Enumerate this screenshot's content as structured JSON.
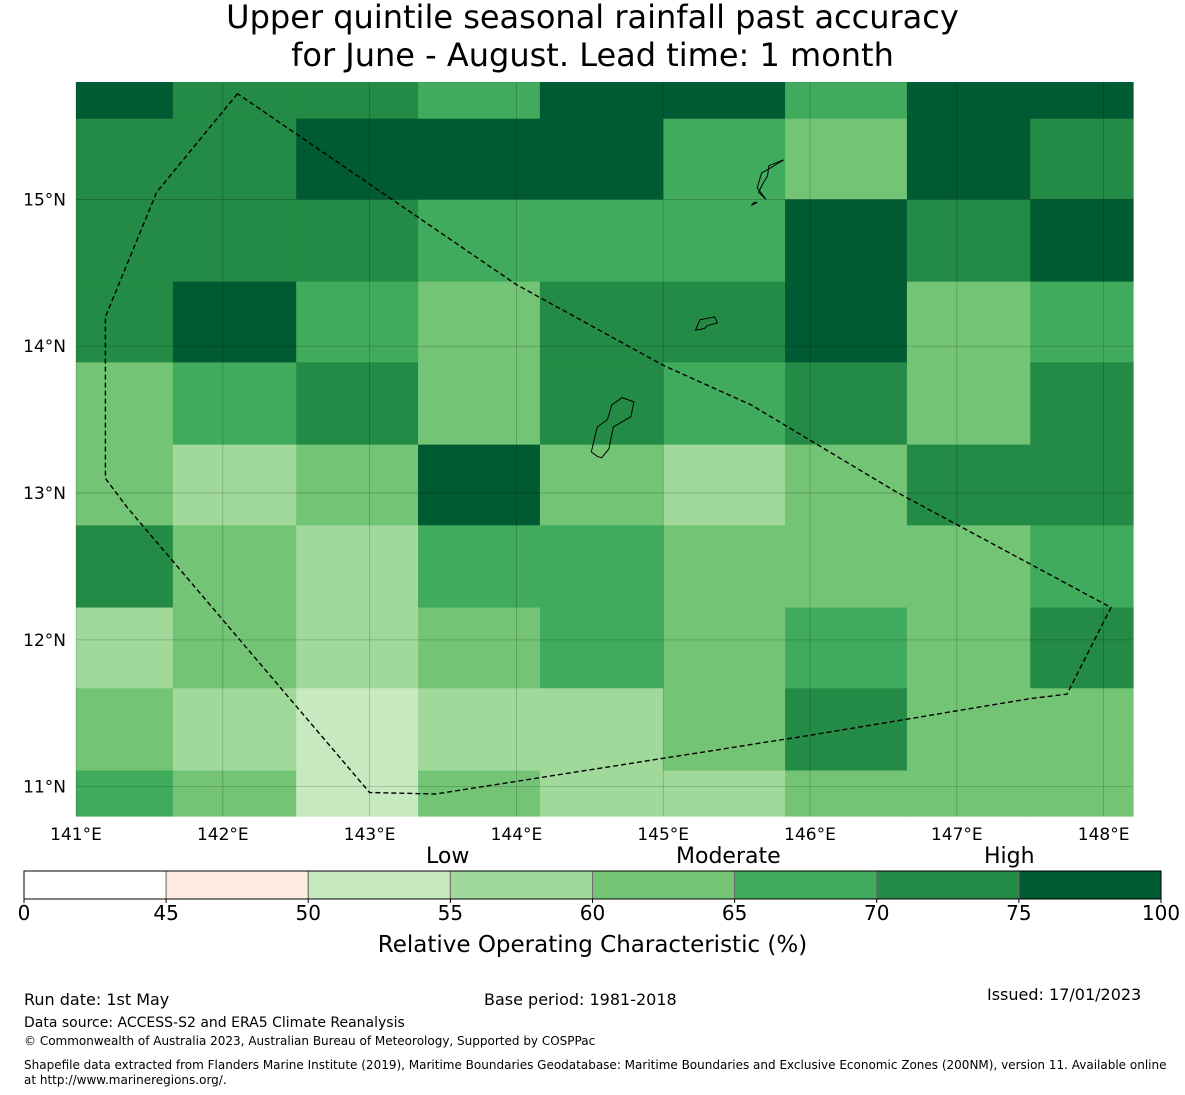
{
  "title": {
    "line1": "Upper quintile seasonal rainfall past accuracy",
    "line2": "for June - August. Lead time: 1 month"
  },
  "map": {
    "lon_range": [
      141.0,
      148.2
    ],
    "lat_range": [
      10.8,
      15.8
    ],
    "x_ticks": [
      {
        "value": 141,
        "label": "141°E"
      },
      {
        "value": 142,
        "label": "142°E"
      },
      {
        "value": 143,
        "label": "143°E"
      },
      {
        "value": 144,
        "label": "144°E"
      },
      {
        "value": 145,
        "label": "145°E"
      },
      {
        "value": 146,
        "label": "146°E"
      },
      {
        "value": 147,
        "label": "147°E"
      },
      {
        "value": 148,
        "label": "148°E"
      }
    ],
    "y_ticks": [
      {
        "value": 15,
        "label": "15°N"
      },
      {
        "value": 14,
        "label": "14°N"
      },
      {
        "value": 13,
        "label": "13°N"
      },
      {
        "value": 12,
        "label": "12°N"
      },
      {
        "value": 11,
        "label": "11°N"
      }
    ],
    "grid_lon_edges": [
      141.0,
      141.66,
      142.5,
      143.33,
      144.16,
      145.0,
      145.83,
      146.66,
      147.5,
      148.2
    ],
    "grid_lat_edges": [
      15.8,
      15.55,
      15.0,
      14.44,
      13.89,
      13.33,
      12.78,
      12.22,
      11.67,
      11.11,
      10.8
    ],
    "cell_values": [
      [
        78,
        72,
        72,
        67,
        78,
        78,
        67,
        78,
        78
      ],
      [
        72,
        72,
        78,
        78,
        78,
        67,
        62,
        78,
        72
      ],
      [
        72,
        72,
        72,
        67,
        67,
        67,
        78,
        72,
        78
      ],
      [
        72,
        78,
        67,
        62,
        72,
        72,
        78,
        62,
        67
      ],
      [
        62,
        67,
        72,
        62,
        72,
        67,
        72,
        62,
        72
      ],
      [
        62,
        57,
        62,
        78,
        62,
        57,
        62,
        72,
        72
      ],
      [
        72,
        62,
        57,
        67,
        67,
        62,
        62,
        62,
        67
      ],
      [
        57,
        62,
        57,
        62,
        67,
        62,
        67,
        62,
        72
      ],
      [
        62,
        57,
        52,
        57,
        57,
        62,
        72,
        62,
        62
      ],
      [
        67,
        62,
        52,
        62,
        57,
        57,
        62,
        62,
        62
      ]
    ],
    "eez_boundary": [
      [
        142.1,
        15.72
      ],
      [
        141.55,
        15.05
      ],
      [
        141.2,
        14.2
      ],
      [
        141.2,
        13.1
      ],
      [
        141.35,
        12.9
      ],
      [
        143.0,
        10.96
      ],
      [
        143.45,
        10.95
      ],
      [
        146.0,
        11.35
      ],
      [
        147.5,
        11.6
      ],
      [
        147.75,
        11.63
      ],
      [
        148.05,
        12.22
      ],
      [
        146.6,
        13.0
      ],
      [
        145.6,
        13.6
      ],
      [
        145.0,
        13.87
      ],
      [
        144.0,
        14.42
      ],
      [
        142.1,
        15.72
      ]
    ],
    "islands": [
      [
        [
          144.65,
          13.6
        ],
        [
          144.72,
          13.65
        ],
        [
          144.8,
          13.62
        ],
        [
          144.78,
          13.52
        ],
        [
          144.66,
          13.45
        ],
        [
          144.63,
          13.3
        ],
        [
          144.58,
          13.24
        ],
        [
          144.55,
          13.25
        ],
        [
          144.51,
          13.28
        ],
        [
          144.55,
          13.45
        ],
        [
          144.62,
          13.5
        ],
        [
          144.65,
          13.6
        ]
      ],
      [
        [
          145.25,
          14.18
        ],
        [
          145.35,
          14.2
        ],
        [
          145.37,
          14.16
        ],
        [
          145.3,
          14.14
        ],
        [
          145.28,
          14.12
        ],
        [
          145.22,
          14.11
        ],
        [
          145.25,
          14.18
        ]
      ],
      [
        [
          145.82,
          15.27
        ],
        [
          145.72,
          15.23
        ],
        [
          145.71,
          15.16
        ],
        [
          145.68,
          15.11
        ],
        [
          145.65,
          15.05
        ],
        [
          145.7,
          15.0
        ],
        [
          145.64,
          15.08
        ],
        [
          145.67,
          15.18
        ],
        [
          145.74,
          15.22
        ],
        [
          145.82,
          15.27
        ]
      ],
      [
        [
          145.64,
          14.98
        ],
        [
          145.6,
          14.96
        ],
        [
          145.62,
          14.98
        ],
        [
          145.64,
          14.98
        ]
      ]
    ]
  },
  "colorbar": {
    "bin_edges": [
      0,
      45,
      50,
      55,
      60,
      65,
      70,
      75,
      100
    ],
    "bin_colors": [
      "#ffffff",
      "#fdebe1",
      "#c7e9c0",
      "#a1d99b",
      "#74c476",
      "#41ab5d",
      "#238b45",
      "#005a32"
    ],
    "tick_labels": [
      "0",
      "45",
      "50",
      "55",
      "60",
      "65",
      "70",
      "75",
      "100"
    ],
    "category_labels": {
      "low": "Low",
      "moderate": "Moderate",
      "high": "High"
    },
    "axis_label": "Relative Operating Characteristic (%)"
  },
  "footer": {
    "run_date": "Run date: 1st May",
    "base_period": "Base period: 1981-2018",
    "issued": "Issued: 17/01/2023",
    "data_source": "Data source: ACCESS-S2 and ERA5 Climate Reanalysis",
    "copyright": "© Commonwealth of Australia 2023, Australian Bureau of Meteorology, Supported by COSPPac",
    "shapefile_line1": "Shapefile data extracted from Flanders Marine Institute (2019), Maritime Boundaries Geodatabase: Maritime Boundaries and Exclusive Economic Zones (200NM), version 11. Available online",
    "shapefile_line2": "at http://www.marineregions.org/."
  }
}
